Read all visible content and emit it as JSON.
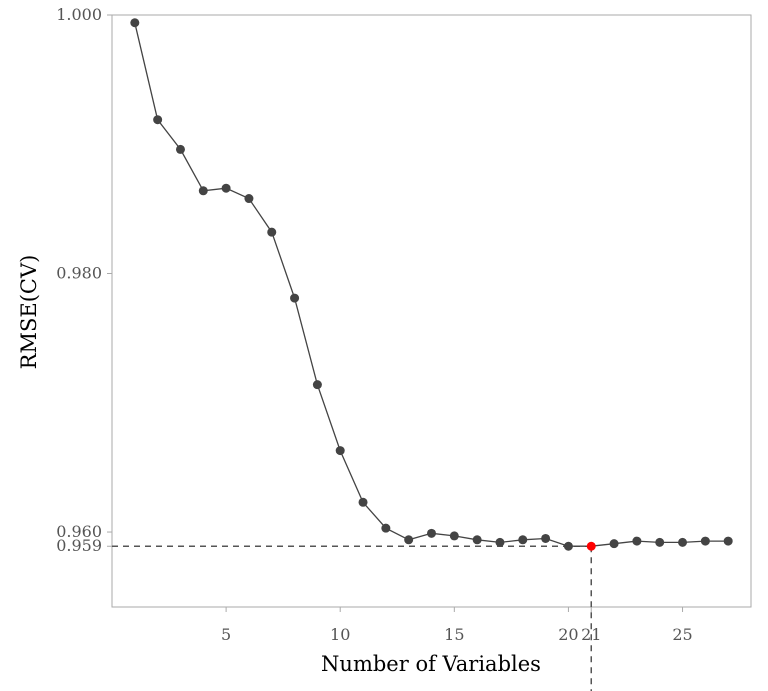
{
  "chart_data": {
    "type": "line",
    "xlabel": "Number of Variables",
    "ylabel": "RMSE(CV)",
    "x": [
      1,
      2,
      3,
      4,
      5,
      6,
      7,
      8,
      9,
      10,
      11,
      12,
      13,
      14,
      15,
      16,
      17,
      18,
      19,
      20,
      21,
      22,
      23,
      24,
      25,
      26,
      27
    ],
    "y": [
      0.9994,
      0.9919,
      0.9896,
      0.9864,
      0.9866,
      0.9858,
      0.9832,
      0.9781,
      0.9714,
      0.9663,
      0.9623,
      0.9603,
      0.9594,
      0.9599,
      0.9597,
      0.9594,
      0.9592,
      0.9594,
      0.9595,
      0.9589,
      0.9589,
      0.9591,
      0.9593,
      0.9592,
      0.9592,
      0.9593,
      0.9593
    ],
    "xlim": [
      0,
      28
    ],
    "ylim": [
      0.9542,
      1.0
    ],
    "x_ticks": [
      {
        "value": 5,
        "label": "5"
      },
      {
        "value": 10,
        "label": "10"
      },
      {
        "value": 15,
        "label": "15"
      },
      {
        "value": 20,
        "label": "20"
      },
      {
        "value": 21,
        "label": "21"
      },
      {
        "value": 25,
        "label": "25"
      }
    ],
    "y_ticks": [
      {
        "value": 1.0,
        "label": "1.000"
      },
      {
        "value": 0.98,
        "label": "0.980"
      },
      {
        "value": 0.96,
        "label": "0.960"
      },
      {
        "value": 0.9589,
        "label": "0.959"
      }
    ],
    "highlight": {
      "x": 21,
      "y": 0.9589
    },
    "grid": false,
    "colors": {
      "line": "#444444",
      "point": "#444444",
      "highlight": "#ff0000",
      "frame": "#aaaaaa",
      "reference": "#555555"
    }
  }
}
